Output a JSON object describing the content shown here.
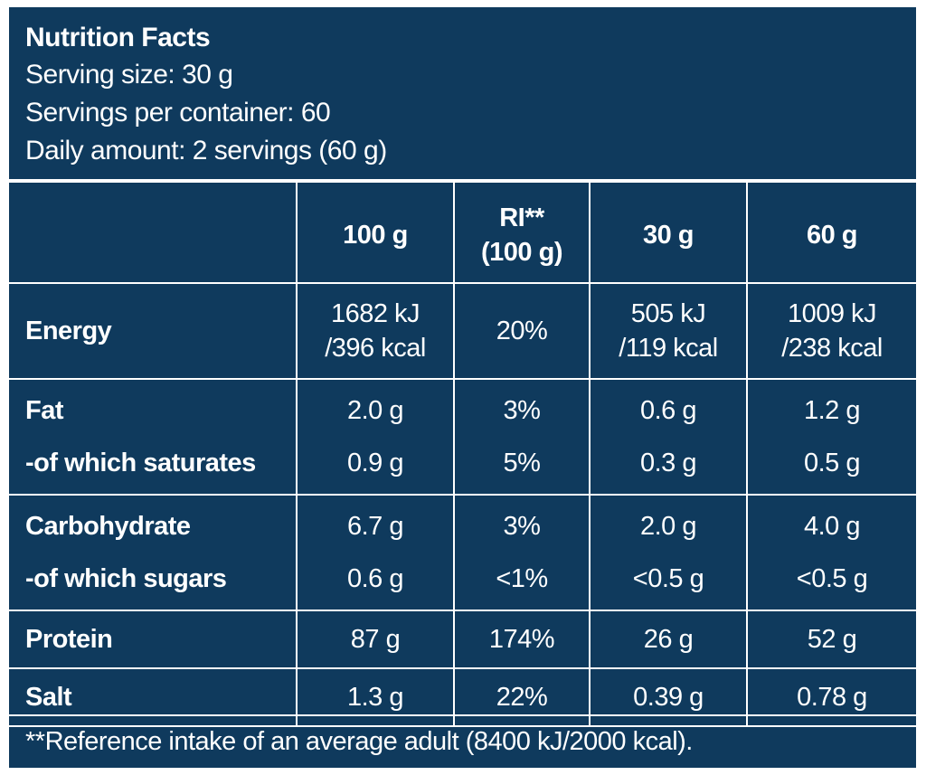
{
  "header": {
    "title": "Nutrition Facts",
    "serving_size": "Serving size: 30 g",
    "servings_per_container": "Servings per container: 60",
    "daily_amount": "Daily amount: 2 servings (60 g)"
  },
  "columns": {
    "c100": "100 g",
    "ri_line1": "RI**",
    "ri_line2": "(100 g)",
    "c30": "30 g",
    "c60": "60 g"
  },
  "energy": {
    "label": "Energy",
    "v100_a": "1682 kJ",
    "v100_b": "/396 kcal",
    "ri": "20%",
    "v30_a": "505 kJ",
    "v30_b": "/119 kcal",
    "v60_a": "1009 kJ",
    "v60_b": "/238 kcal"
  },
  "fat": {
    "label": "Fat",
    "v100": "2.0 g",
    "ri": "3%",
    "v30": "0.6 g",
    "v60": "1.2 g",
    "sub_label": "-of which saturates",
    "sub_v100": "0.9 g",
    "sub_ri": "5%",
    "sub_v30": "0.3 g",
    "sub_v60": "0.5 g"
  },
  "carbohydrate": {
    "label": "Carbohydrate",
    "v100": "6.7 g",
    "ri": "3%",
    "v30": "2.0 g",
    "v60": "4.0 g",
    "sub_label": "-of which sugars",
    "sub_v100": "0.6 g",
    "sub_ri": "<1%",
    "sub_v30": "<0.5 g",
    "sub_v60": "<0.5 g"
  },
  "protein": {
    "label": "Protein",
    "v100": "87 g",
    "ri": "174%",
    "v30": "26 g",
    "v60": "52 g"
  },
  "salt": {
    "label": "Salt",
    "v100": "1.3 g",
    "ri": "22%",
    "v30": "0.39 g",
    "v60": "0.78 g"
  },
  "footer": {
    "note": "**Reference intake of an average adult (8400 kJ/2000 kcal)."
  },
  "colors": {
    "background": "#0f3a5d",
    "text": "#ffffff",
    "border": "#ffffff"
  }
}
